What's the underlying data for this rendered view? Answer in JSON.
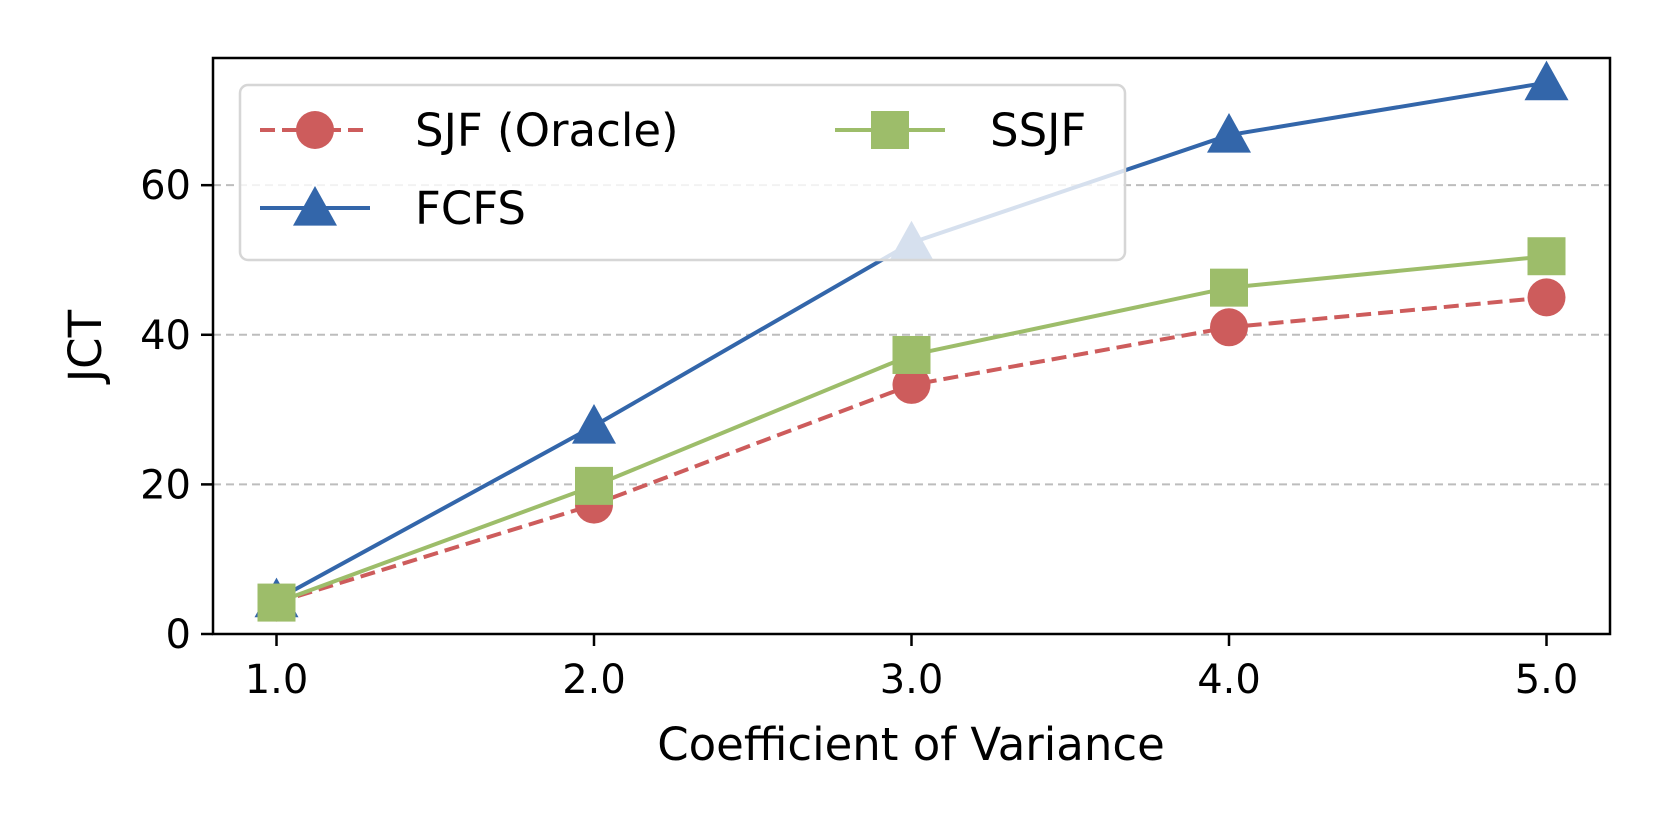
{
  "chart_data": {
    "type": "line",
    "title": "",
    "xlabel": "Coefficient of Variance",
    "ylabel": "JCT",
    "categories": [
      "1.0",
      "2.0",
      "3.0",
      "4.0",
      "5.0"
    ],
    "x": [
      1.0,
      2.0,
      3.0,
      4.0,
      5.0
    ],
    "xlim": [
      0.8,
      5.2
    ],
    "ylim": [
      0,
      77
    ],
    "yticks": [
      0,
      20,
      40,
      60
    ],
    "ytick_labels": [
      "0",
      "20",
      "40",
      "60"
    ],
    "grid": "horizontal-dashed",
    "legend_position": "top-left",
    "series": [
      {
        "name": "SJF (Oracle)",
        "values": [
          4.2,
          17.3,
          33.3,
          41.0,
          45.0
        ],
        "color": "#cd5c5c",
        "marker": "circle",
        "line_style": "dashed"
      },
      {
        "name": "FCFS",
        "values": [
          4.6,
          27.8,
          52.3,
          66.7,
          73.7
        ],
        "color": "#3366aa",
        "marker": "triangle",
        "line_style": "solid"
      },
      {
        "name": "SSJF",
        "values": [
          4.2,
          19.8,
          37.3,
          46.3,
          50.5
        ],
        "color": "#9dbd6a",
        "marker": "square",
        "line_style": "solid"
      }
    ]
  }
}
